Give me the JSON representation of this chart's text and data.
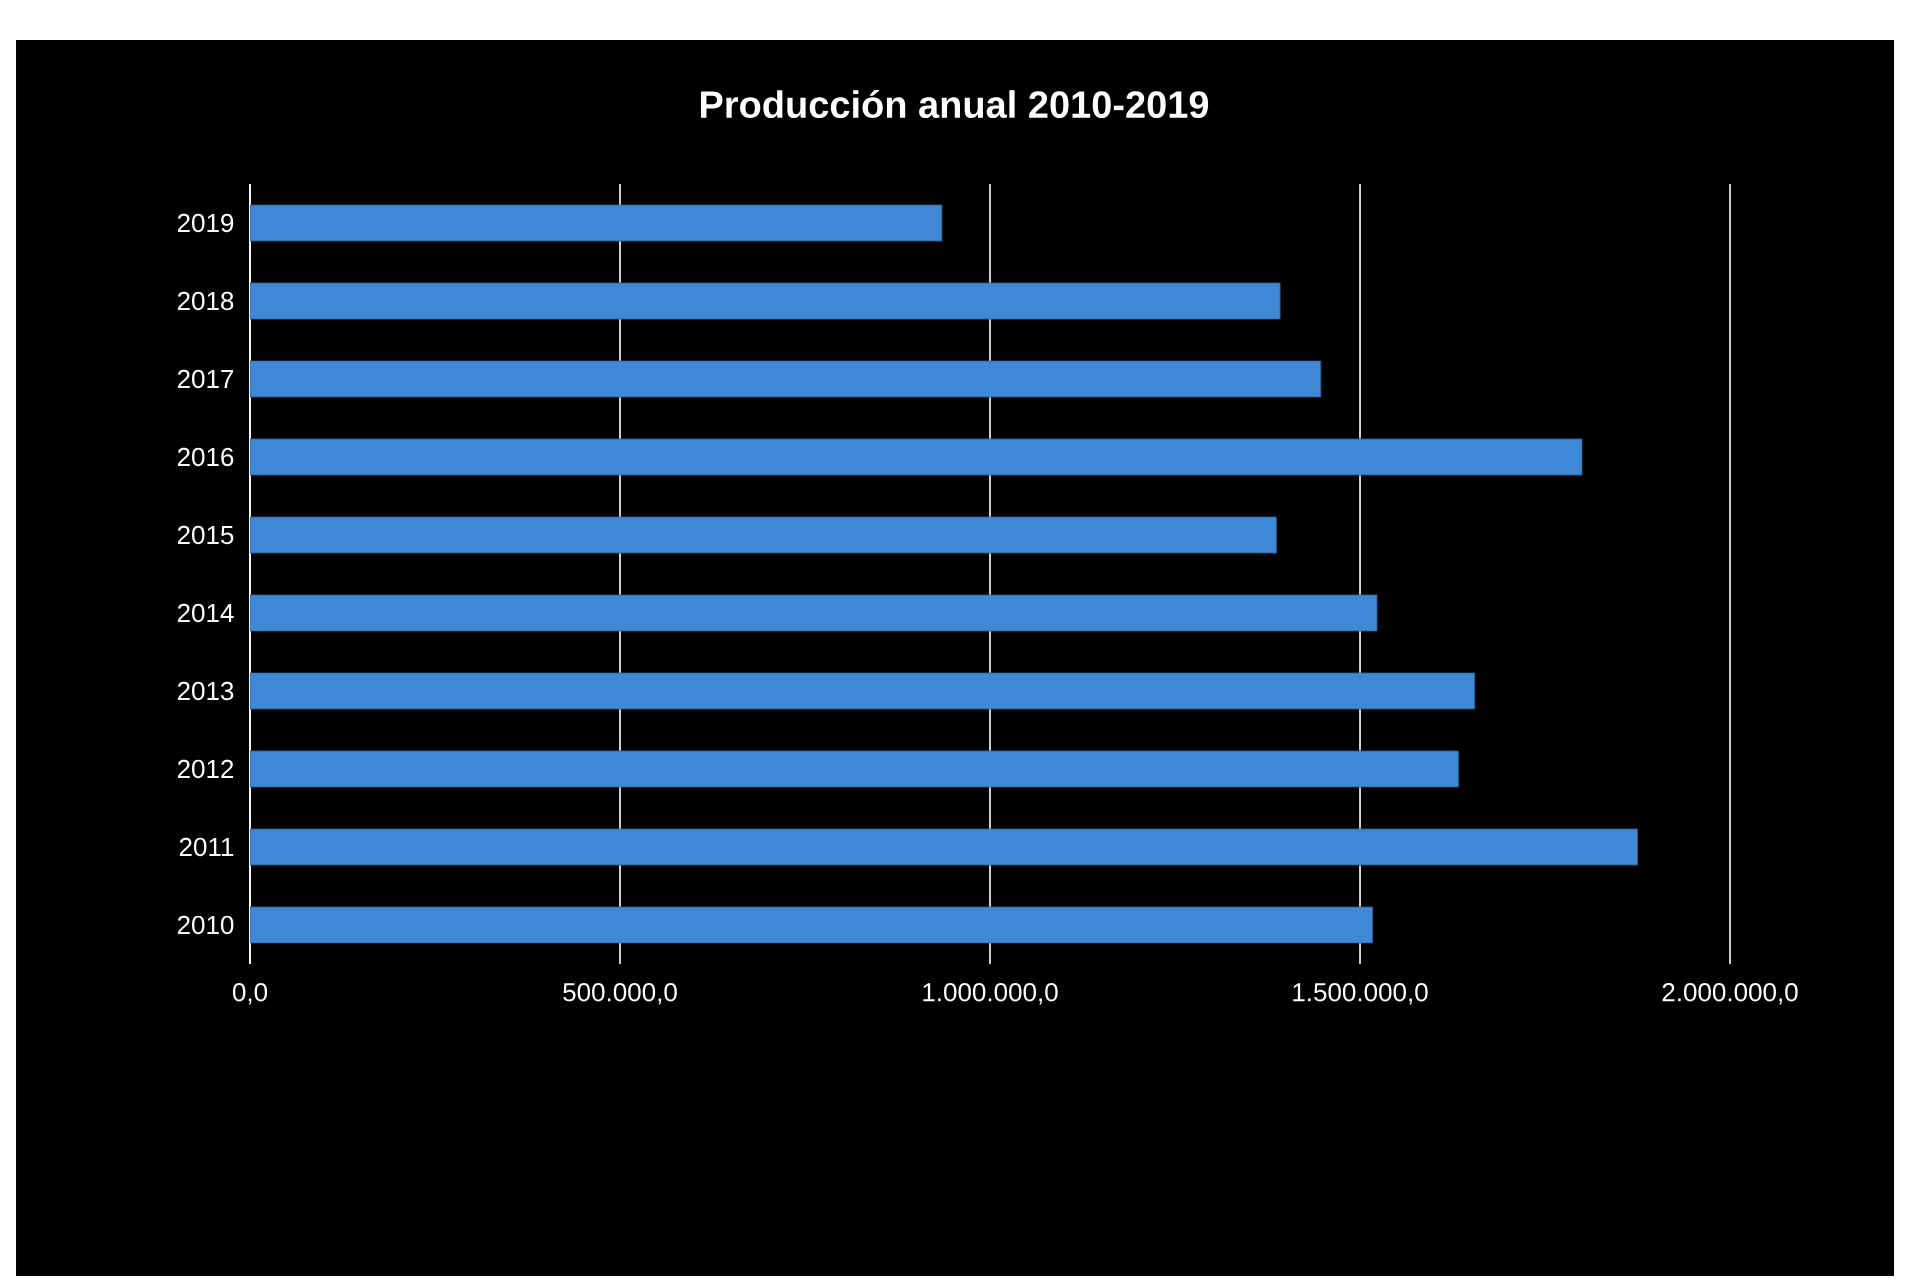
{
  "chart_data": {
    "type": "bar",
    "orientation": "horizontal",
    "title": "Producción anual 2010-2019",
    "categories": [
      "2019",
      "2018",
      "2017",
      "2016",
      "2015",
      "2014",
      "2013",
      "2012",
      "2011",
      "2010"
    ],
    "values": [
      935000,
      1392000,
      1447000,
      1800000,
      1387000,
      1523000,
      1655000,
      1633000,
      1875000,
      1517000
    ],
    "color": "#3f88d6",
    "xlim": [
      0,
      2000000
    ],
    "xticks": [
      {
        "value": 0,
        "label": "0,0"
      },
      {
        "value": 500000,
        "label": "500.000,0"
      },
      {
        "value": 1000000,
        "label": "1.000.000,0"
      },
      {
        "value": 1500000,
        "label": "1.500.000,0"
      },
      {
        "value": 2000000,
        "label": "2.000.000,0"
      }
    ],
    "grid": "x"
  }
}
